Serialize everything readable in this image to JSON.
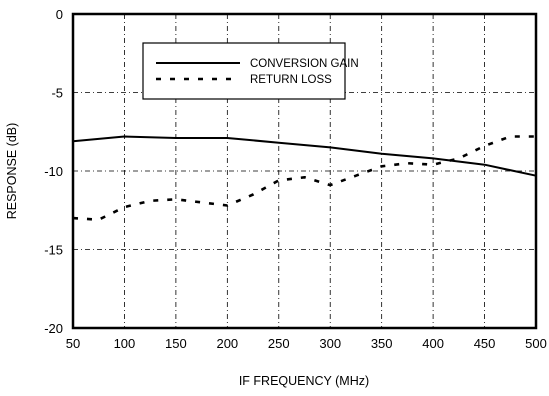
{
  "chart_data": {
    "type": "line",
    "title": "",
    "xlabel": "IF FREQUENCY (MHz)",
    "ylabel": "RESPONSE (dB)",
    "xlim": [
      50,
      500
    ],
    "ylim": [
      -20,
      0
    ],
    "xticks": [
      50,
      100,
      150,
      200,
      250,
      300,
      350,
      400,
      450,
      500
    ],
    "yticks": [
      0,
      -5,
      -10,
      -15,
      -20
    ],
    "grid": true,
    "legend_position": "top-left inside",
    "series": [
      {
        "name": "CONVERSION GAIN",
        "style": "solid",
        "color": "#000000",
        "x": [
          50,
          100,
          150,
          200,
          250,
          300,
          350,
          400,
          450,
          500
        ],
        "y": [
          -8.1,
          -7.8,
          -7.9,
          -7.9,
          -8.2,
          -8.5,
          -8.9,
          -9.2,
          -9.6,
          -10.3
        ]
      },
      {
        "name": "RETURN LOSS",
        "style": "dashed",
        "color": "#000000",
        "x": [
          50,
          75,
          100,
          125,
          150,
          175,
          200,
          225,
          250,
          275,
          300,
          325,
          350,
          375,
          400,
          425,
          450,
          475,
          500
        ],
        "y": [
          -13.0,
          -13.1,
          -12.3,
          -11.9,
          -11.8,
          -12.0,
          -12.2,
          -11.5,
          -10.6,
          -10.4,
          -10.9,
          -10.3,
          -9.7,
          -9.5,
          -9.6,
          -9.2,
          -8.4,
          -7.8,
          -7.8
        ]
      }
    ]
  }
}
